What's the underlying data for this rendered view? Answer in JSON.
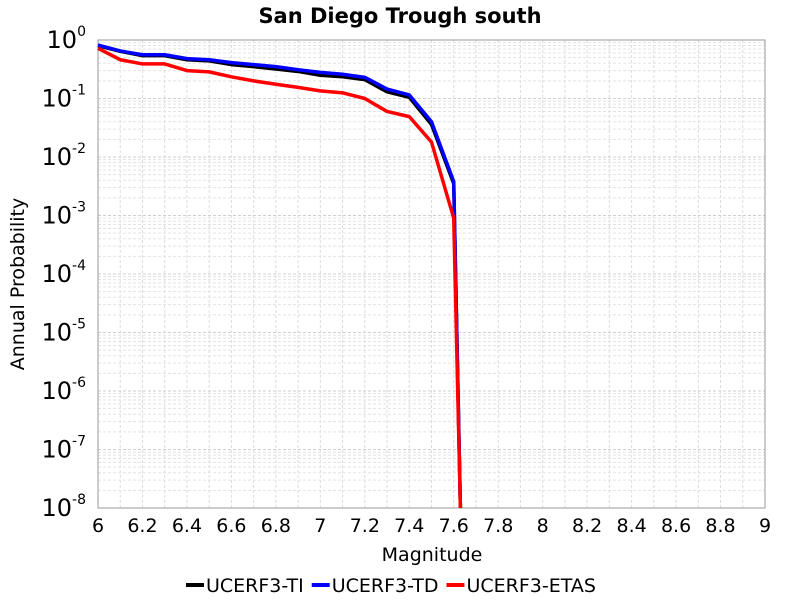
{
  "chart_data": {
    "type": "line",
    "title": "San Diego Trough south",
    "xlabel": "Magnitude",
    "ylabel": "Annual Probability",
    "xlim": [
      6,
      9
    ],
    "ylim_log10": [
      -8,
      0
    ],
    "y_scale": "log",
    "grid": true,
    "legend_position": "bottom",
    "x_ticks": [
      "6",
      "6.2",
      "6.4",
      "6.6",
      "6.8",
      "7",
      "7.2",
      "7.4",
      "7.6",
      "7.8",
      "8",
      "8.2",
      "8.4",
      "8.6",
      "8.8",
      "9"
    ],
    "y_ticks": [
      {
        "base": "10",
        "exp": "0"
      },
      {
        "base": "10",
        "exp": "-1"
      },
      {
        "base": "10",
        "exp": "-2"
      },
      {
        "base": "10",
        "exp": "-3"
      },
      {
        "base": "10",
        "exp": "-4"
      },
      {
        "base": "10",
        "exp": "-5"
      },
      {
        "base": "10",
        "exp": "-6"
      },
      {
        "base": "10",
        "exp": "-7"
      },
      {
        "base": "10",
        "exp": "-8"
      }
    ],
    "series": [
      {
        "name": "UCERF3-TI",
        "color": "#000000",
        "x": [
          6.0,
          6.1,
          6.2,
          6.3,
          6.4,
          6.5,
          6.6,
          6.7,
          6.8,
          6.9,
          7.0,
          7.1,
          7.2,
          7.3,
          7.4,
          7.5,
          7.6,
          7.63
        ],
        "y": [
          0.8,
          0.64,
          0.54,
          0.54,
          0.46,
          0.44,
          0.38,
          0.35,
          0.32,
          0.29,
          0.25,
          0.235,
          0.21,
          0.13,
          0.105,
          0.036,
          0.0035,
          1e-08
        ]
      },
      {
        "name": "UCERF3-TD",
        "color": "#0000ff",
        "x": [
          6.0,
          6.1,
          6.2,
          6.3,
          6.4,
          6.5,
          6.6,
          6.7,
          6.8,
          6.9,
          7.0,
          7.1,
          7.2,
          7.3,
          7.4,
          7.5,
          7.6,
          7.63
        ],
        "y": [
          0.82,
          0.65,
          0.56,
          0.56,
          0.48,
          0.46,
          0.41,
          0.38,
          0.35,
          0.31,
          0.28,
          0.26,
          0.23,
          0.145,
          0.115,
          0.04,
          0.0038,
          1e-08
        ]
      },
      {
        "name": "UCERF3-ETAS",
        "color": "#ff0000",
        "x": [
          6.0,
          6.1,
          6.2,
          6.3,
          6.4,
          6.5,
          6.6,
          6.7,
          6.8,
          6.9,
          7.0,
          7.1,
          7.2,
          7.3,
          7.4,
          7.5,
          7.6,
          7.63
        ],
        "y": [
          0.72,
          0.46,
          0.39,
          0.39,
          0.3,
          0.285,
          0.235,
          0.2,
          0.175,
          0.155,
          0.135,
          0.125,
          0.1,
          0.06,
          0.049,
          0.018,
          0.0009,
          1e-08
        ]
      }
    ]
  }
}
